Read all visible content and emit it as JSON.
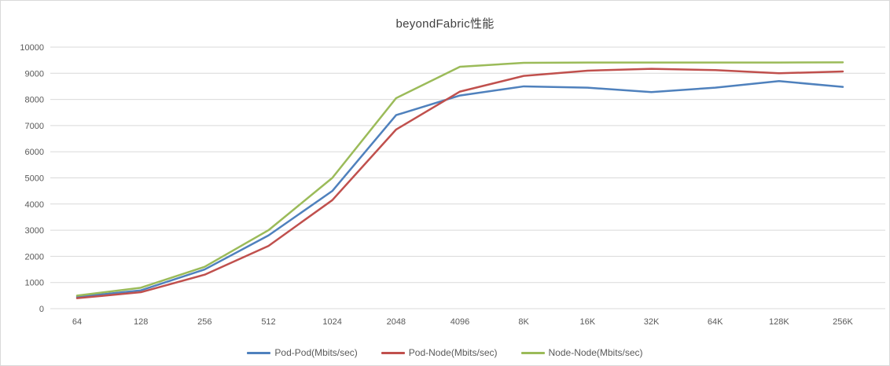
{
  "chart_data": {
    "type": "line",
    "title": "beyondFabric性能",
    "categories": [
      "64",
      "128",
      "256",
      "512",
      "1024",
      "2048",
      "4096",
      "8K",
      "16K",
      "32K",
      "64K",
      "128K",
      "256K"
    ],
    "series": [
      {
        "name": "Pod-Pod(Mbits/sec)",
        "color": "#4F81BD",
        "values": [
          450,
          700,
          1500,
          2800,
          4500,
          7400,
          8150,
          8500,
          8450,
          8280,
          8450,
          8700,
          8480
        ]
      },
      {
        "name": "Pod-Node(Mbits/sec)",
        "color": "#C0504D",
        "values": [
          400,
          630,
          1300,
          2400,
          4150,
          6850,
          8300,
          8900,
          9100,
          9170,
          9120,
          9000,
          9070
        ]
      },
      {
        "name": "Node-Node(Mbits/sec)",
        "color": "#9BBB59",
        "values": [
          500,
          800,
          1600,
          3000,
          5000,
          8050,
          9250,
          9400,
          9410,
          9410,
          9410,
          9410,
          9420
        ]
      }
    ],
    "xlabel": "",
    "ylabel": "",
    "ylim": [
      0,
      10000
    ],
    "yticks": [
      0,
      1000,
      2000,
      3000,
      4000,
      5000,
      6000,
      7000,
      8000,
      9000,
      10000
    ],
    "grid": "horizontal",
    "legend_position": "bottom"
  },
  "colors": {
    "grid": "#D9D9D9",
    "axis_text": "#595959",
    "title_text": "#404040",
    "background": "#FFFFFF",
    "border": "#D9D9D9"
  }
}
